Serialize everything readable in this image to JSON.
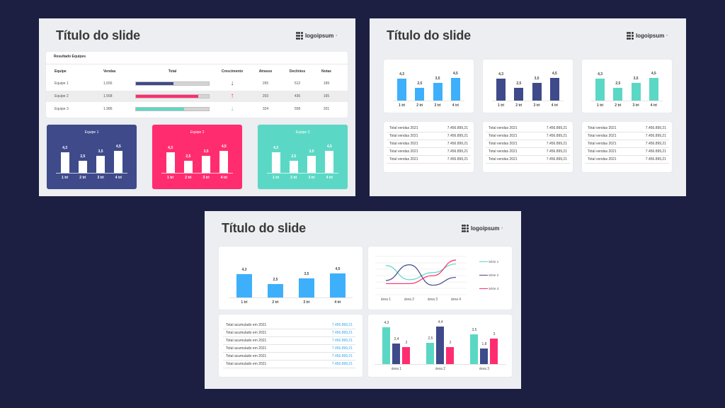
{
  "colors": {
    "background": "#1c1f41",
    "slide_bg": "#eceef1",
    "navy": "#3f4a8a",
    "pink": "#ff2d6f",
    "teal": "#5bd8c5",
    "blue": "#3eb0fb",
    "link_blue": "#2fa6e8"
  },
  "logo": {
    "text": "logoipsum",
    "mark": "°"
  },
  "slide1": {
    "title": "Título do slide",
    "table": {
      "heading": "Resultado Equipes",
      "columns": [
        "Equipe",
        "Vendas",
        "Total",
        "Crescimento",
        "Atrasos",
        "Declínios",
        "Notas"
      ],
      "rows": [
        {
          "team": "Equipe 1",
          "sales": "1,656",
          "total_pct": 51,
          "color": "#3f4a8a",
          "growth": "↓",
          "late": "265",
          "declines": "512",
          "notes": "189"
        },
        {
          "team": "Equipe 2",
          "sales": "1,568",
          "total_pct": 85,
          "color": "#ff2d6f",
          "growth": "↑",
          "late": "203",
          "declines": "436",
          "notes": "165"
        },
        {
          "team": "Equipe 3",
          "sales": "1.986",
          "total_pct": 66,
          "color": "#5bd8c5",
          "growth": "↓",
          "late": "324",
          "declines": "558",
          "notes": "201"
        }
      ]
    },
    "team_cards": [
      {
        "title": "Equipe 1",
        "color": "#3f4a8a"
      },
      {
        "title": "Equipe 2",
        "color": "#ff2d6f"
      },
      {
        "title": "Equipe 3",
        "color": "#5bd8c5"
      }
    ]
  },
  "slide2": {
    "title": "Título do slide",
    "chart_colors": [
      "#3eb0fb",
      "#3f4a8a",
      "#5bd8c5"
    ],
    "list_rows": [
      {
        "label": "Total vendas 2021",
        "value": "7.456.899,21"
      },
      {
        "label": "Total vendas 2021",
        "value": "7.456.899,21"
      },
      {
        "label": "Total vendas 2021",
        "value": "7.456.899,21"
      },
      {
        "label": "Total vendas 2021",
        "value": "7.456.899,21"
      },
      {
        "label": "Total vendas 2021",
        "value": "7.456.899,21"
      }
    ]
  },
  "slide3": {
    "title": "Título do slide",
    "list_rows": [
      {
        "label": "Total acumulado em 2021",
        "value": "7.456.899,21"
      },
      {
        "label": "Total acumulado em 2021",
        "value": "7.456.899,21"
      },
      {
        "label": "Total acumulado em 2021",
        "value": "7.456.899,21"
      },
      {
        "label": "Total acumulado em 2021",
        "value": "7.456.899,21"
      },
      {
        "label": "Total acumulado em 2021",
        "value": "7.456.899,21"
      },
      {
        "label": "Total acumulado em 2021",
        "value": "7.456.899,21"
      }
    ]
  },
  "chart_data": [
    {
      "type": "bar",
      "title": "Quarterly bar chart (repeated across slides)",
      "categories": [
        "1 tri",
        "2 tri",
        "3 tri",
        "4 tri"
      ],
      "values": [
        4.3,
        2.5,
        3.5,
        4.5
      ],
      "value_labels": [
        "4,3",
        "2,5",
        "3,5",
        "4,5"
      ],
      "xlabel": "",
      "ylabel": "",
      "ylim": [
        0,
        5
      ]
    },
    {
      "type": "line",
      "title": "",
      "categories": [
        "área 1",
        "área 2",
        "área 3",
        "área 4"
      ],
      "series": [
        {
          "name": "Série 1",
          "color": "#5bd8c5",
          "values": [
            4.3,
            2.5,
            3.4,
            4.5
          ]
        },
        {
          "name": "Série 2",
          "color": "#3f4a8a",
          "values": [
            2.4,
            4.4,
            1.8,
            2.8
          ]
        },
        {
          "name": "Série 3",
          "color": "#ff2d6f",
          "values": [
            2.0,
            2.0,
            3.0,
            5.0
          ]
        }
      ],
      "legend_position": "right",
      "grid": true
    },
    {
      "type": "bar",
      "title": "",
      "categories": [
        "área 1",
        "área 2",
        "área 3"
      ],
      "series": [
        {
          "name": "Série 1",
          "color": "#5bd8c5",
          "values": [
            4.3,
            2.5,
            3.5
          ],
          "labels": [
            "4,3",
            "2,5",
            "3,5"
          ]
        },
        {
          "name": "Série 2",
          "color": "#3f4a8a",
          "values": [
            2.4,
            4.4,
            1.8
          ],
          "labels": [
            "2,4",
            "4,4",
            "1,8"
          ]
        },
        {
          "name": "Série 3",
          "color": "#ff2d6f",
          "values": [
            2,
            2,
            3
          ],
          "labels": [
            "2",
            "2",
            "3"
          ]
        }
      ],
      "ylim": [
        0,
        5
      ]
    }
  ]
}
